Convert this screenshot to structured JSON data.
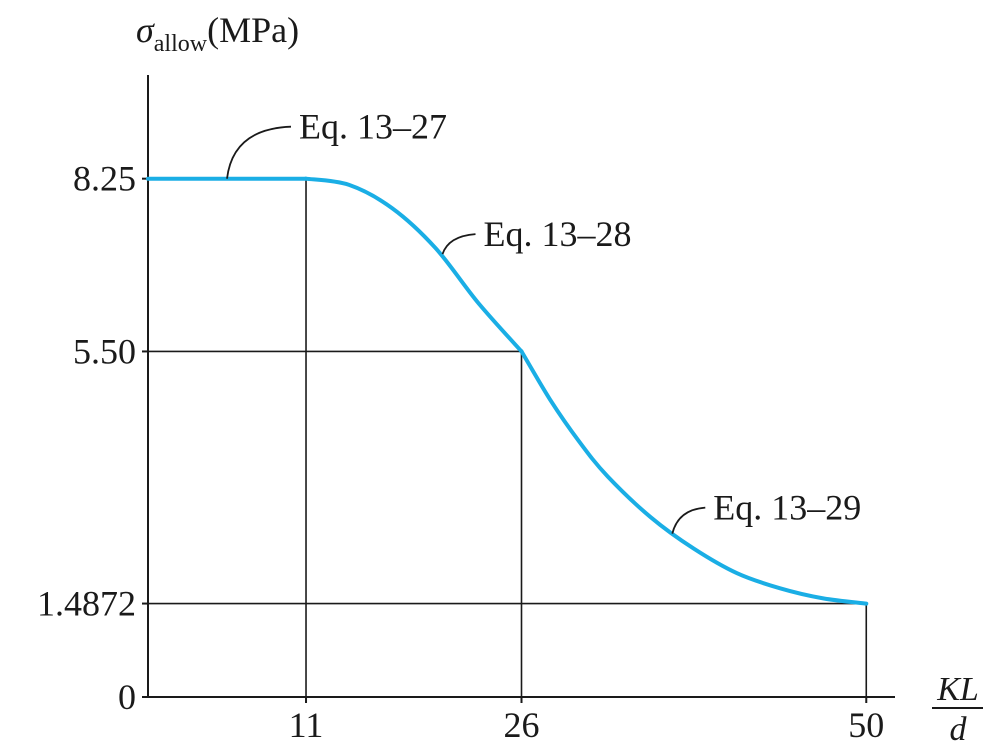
{
  "chart_data": {
    "type": "line",
    "ylabel": {
      "symbol": "σ",
      "subscript": "allow",
      "unit": "(MPa)"
    },
    "xlabel": {
      "numerator": "KL",
      "denominator": "d"
    },
    "xlim": [
      0,
      52
    ],
    "ylim": [
      0,
      9.9
    ],
    "x_ticks": [
      {
        "value": 11,
        "label": "11"
      },
      {
        "value": 26,
        "label": "26"
      },
      {
        "value": 50,
        "label": "50"
      }
    ],
    "y_ticks": [
      {
        "value": 0,
        "label": "0"
      },
      {
        "value": 1.4872,
        "label": "1.4872"
      },
      {
        "value": 5.5,
        "label": "5.50"
      },
      {
        "value": 8.25,
        "label": "8.25"
      }
    ],
    "reference_lines": [
      {
        "x": 11,
        "y": 8.25
      },
      {
        "x": 26,
        "y": 5.5
      },
      {
        "x": 50,
        "y": 1.4872
      }
    ],
    "series": [
      {
        "color": "#1aaee5",
        "segments": [
          {
            "equation": "Eq. 13–27",
            "x": [
              0,
              11
            ],
            "y": [
              8.25,
              8.25
            ]
          },
          {
            "equation": "Eq. 13–28",
            "x": [
              11,
              14,
              17,
              20,
              23,
              26
            ],
            "y": [
              8.25,
              8.15,
              7.78,
              7.15,
              6.27,
              5.5
            ]
          },
          {
            "equation": "Eq. 13–29",
            "x": [
              26,
              28,
              30,
              32,
              35,
              38,
              41,
              44,
              47,
              50
            ],
            "y": [
              5.5,
              4.73,
              4.07,
              3.51,
              2.86,
              2.36,
              1.97,
              1.73,
              1.57,
              1.4872
            ]
          }
        ]
      }
    ],
    "annotations": [
      {
        "text": "Eq. 13–27",
        "target": {
          "x": 5.5,
          "y": 8.25
        }
      },
      {
        "text": "Eq. 13–28",
        "target": {
          "x": 20.5,
          "y": 7.05
        }
      },
      {
        "text": "Eq. 13–29",
        "target": {
          "x": 36.5,
          "y": 2.6
        }
      }
    ],
    "colors": {
      "curve": "#1aaee5",
      "axis": "#1a1a1a",
      "reference": "#1a1a1a"
    }
  }
}
